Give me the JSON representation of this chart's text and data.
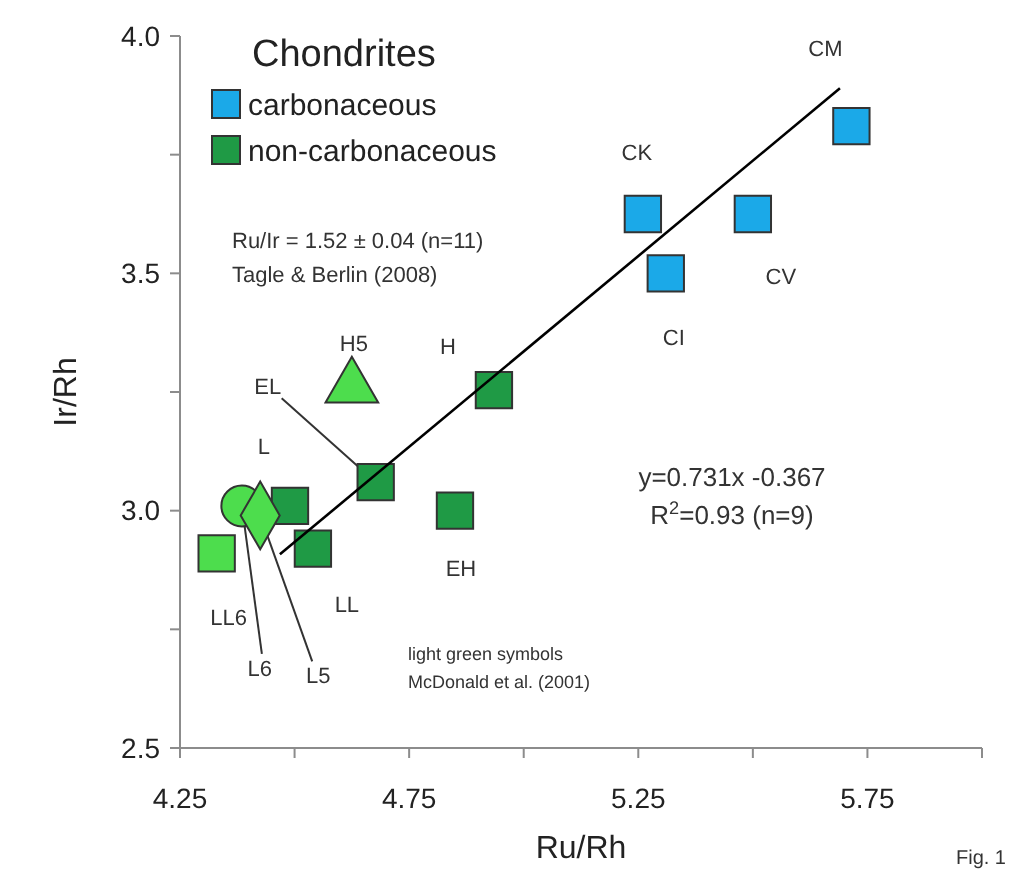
{
  "chart_data": {
    "type": "scatter",
    "title": "Chondrites",
    "xlabel": "Ru/Rh",
    "ylabel": "Ir/Rh",
    "xlim": [
      4.25,
      6.0
    ],
    "ylim": [
      2.5,
      4.0
    ],
    "xticks": [
      4.25,
      {
        "value": 4.5,
        "label": null
      },
      4.75,
      {
        "value": 5.0,
        "label": null
      },
      5.25,
      {
        "value": 5.5,
        "label": null
      },
      5.75,
      {
        "value": 6.0,
        "label": null
      }
    ],
    "yticks": [
      2.5,
      {
        "value": 2.75,
        "label": null
      },
      {
        "value": 3,
        "label": "3.0"
      },
      {
        "value": 3.25,
        "label": null
      },
      3.5,
      {
        "value": 3.75,
        "label": null
      },
      {
        "value": 4,
        "label": "4.0"
      }
    ],
    "grid": false,
    "legend": "top left",
    "series": [
      {
        "name": "carbonaceous",
        "color": "#1ba9e8",
        "marker": "square",
        "x": [
          5.715,
          5.26,
          5.5,
          5.31
        ],
        "values": [
          3.81,
          3.625,
          3.625,
          3.5
        ]
      },
      {
        "name": "non-carbonaceous",
        "color": "#1f9a45",
        "marker": "square",
        "x": [
          4.935,
          4.677,
          4.49,
          4.54,
          4.85
        ],
        "values": [
          3.254,
          3.06,
          3.01,
          2.92,
          3.0
        ]
      },
      {
        "color": "#4ddd4d",
        "marker": "square",
        "x": [
          4.33
        ],
        "values": [
          2.91
        ]
      },
      {
        "color": "#4ddd4d",
        "marker": "circle",
        "x": [
          4.385
        ],
        "values": [
          3.01
        ]
      },
      {
        "color": "#4ddd4d",
        "marker": "diamond",
        "x": [
          4.425
        ],
        "values": [
          2.99
        ]
      },
      {
        "color": "#4ddd4d",
        "marker": "triangle",
        "x": [
          4.625
        ],
        "values": [
          3.26
        ]
      },
      {
        "type": "line",
        "color": "#000000",
        "x": [
          4.468,
          5.69
        ],
        "values": [
          2.908,
          3.89
        ]
      }
    ],
    "annotations": [
      {
        "text": "CM",
        "x": 5.715,
        "y": 3.81
      },
      {
        "text": "CK",
        "x": 5.26,
        "y": 3.625
      },
      {
        "text": "CV",
        "x": 5.5,
        "y": 3.625
      },
      {
        "text": "CI",
        "x": 5.31,
        "y": 3.5
      },
      {
        "text": "H5",
        "x": 4.625,
        "y": 3.26
      },
      {
        "text": "H",
        "x": 4.935,
        "y": 3.254
      },
      {
        "text": "EL",
        "x": 4.677,
        "y": 3.06
      },
      {
        "text": "L",
        "x": 4.49,
        "y": 3.01
      },
      {
        "text": "LL6",
        "x": 4.33,
        "y": 2.91
      },
      {
        "text": "LL",
        "x": 4.54,
        "y": 2.92
      },
      {
        "text": "EH",
        "x": 4.85,
        "y": 3.0
      },
      {
        "text": "L6",
        "x": 4.385,
        "y": 3.01
      },
      {
        "text": "L5",
        "x": 4.425,
        "y": 2.99
      },
      "Ru/Ir = 1.52 ± 0.04 (n=11)",
      "Tagle & Berlin (2008)",
      "y=0.731x -0.367",
      "R$^{2}$=0.93 (n=9)",
      "light green symbols",
      "McDonald et al. (2001)",
      "Fig. 1"
    ]
  }
}
